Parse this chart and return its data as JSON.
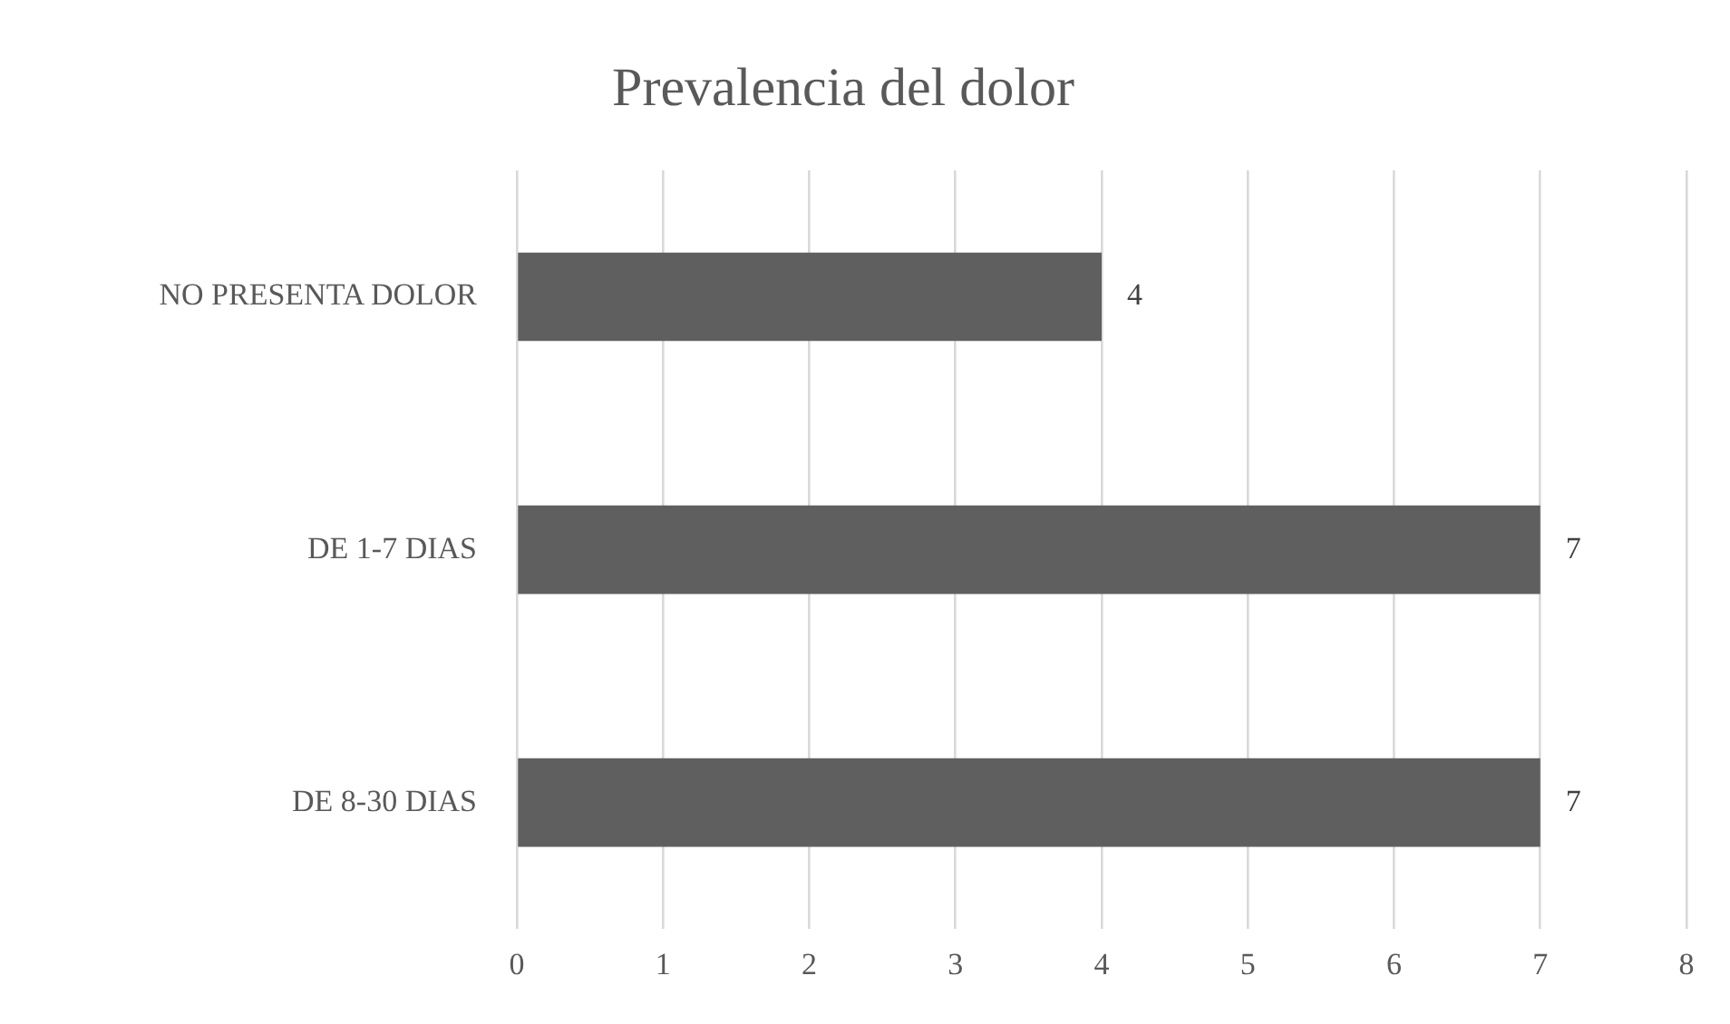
{
  "chart_data": {
    "type": "bar",
    "orientation": "horizontal",
    "title": "Prevalencia del dolor",
    "categories": [
      "NO PRESENTA DOLOR",
      "DE 1-7 DIAS",
      "DE 8-30 DIAS"
    ],
    "values": [
      4,
      7,
      7
    ],
    "color": "#5f5f5f",
    "xlim": [
      0,
      8
    ],
    "xticks": [
      0,
      1,
      2,
      3,
      4,
      5,
      6,
      7,
      8
    ],
    "grid": "x",
    "data_labels": true,
    "legend": false
  }
}
